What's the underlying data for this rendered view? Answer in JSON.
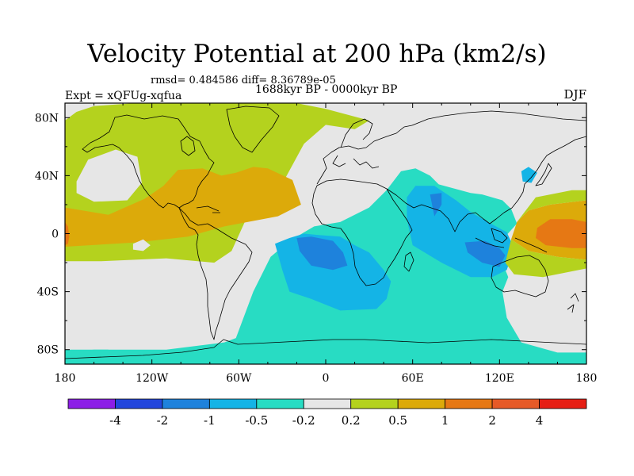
{
  "chart_data": {
    "type": "heatmap",
    "title": "Velocity Potential at 200 hPa (km2/s)",
    "stats_text": "rmsd= 0.484586 diff= 8.36789e-05",
    "period_text": "1688kyr BP - 0000kyr BP",
    "left_label": "Expt = xQFUg-xqfua",
    "right_label": "DJF",
    "projection": "cylindrical equidistant",
    "lon_range": [
      -180,
      180
    ],
    "lat_range": [
      -90,
      90
    ],
    "x_ticks": [
      {
        "value": -180,
        "label": "180"
      },
      {
        "value": -120,
        "label": "120W"
      },
      {
        "value": -60,
        "label": "60W"
      },
      {
        "value": 0,
        "label": "0"
      },
      {
        "value": 60,
        "label": "60E"
      },
      {
        "value": 120,
        "label": "120E"
      },
      {
        "value": 180,
        "label": "180"
      }
    ],
    "y_ticks": [
      {
        "value": 80,
        "label": "80N"
      },
      {
        "value": 40,
        "label": "40N"
      },
      {
        "value": 0,
        "label": "0"
      },
      {
        "value": -40,
        "label": "40S"
      },
      {
        "value": -80,
        "label": "80S"
      }
    ],
    "colorbar": {
      "levels": [
        -4,
        -2,
        -1,
        -0.5,
        -0.2,
        0.2,
        0.5,
        1,
        2,
        4
      ],
      "labels": [
        "-4",
        "-2",
        "-1",
        "-0.5",
        "-0.2",
        "0.2",
        "0.5",
        "1",
        "2",
        "4"
      ],
      "colors": [
        "#8c1ee6",
        "#2346dc",
        "#1e82dc",
        "#14b4e6",
        "#28dcc3",
        "#e6e6e6",
        "#b4d21e",
        "#dcaa0a",
        "#e67814",
        "#e65a28",
        "#e61e14"
      ]
    },
    "background_color": "#e6e6e6",
    "regions": [
      {
        "name": "north-band",
        "level": "0.2-0.5",
        "color": "#b4d21e",
        "points": [
          [
            -160,
            88
          ],
          [
            -90,
            93
          ],
          [
            -20,
            90
          ],
          [
            0,
            86
          ],
          [
            30,
            78
          ],
          [
            20,
            72
          ],
          [
            0,
            75
          ],
          [
            -15,
            62
          ],
          [
            -28,
            38
          ],
          [
            -35,
            24
          ],
          [
            -55,
            10
          ],
          [
            -65,
            -12
          ],
          [
            -77,
            -20
          ],
          [
            -110,
            -17
          ],
          [
            -155,
            -19
          ],
          [
            -180,
            -19
          ],
          [
            -180,
            78
          ],
          [
            -172,
            84
          ]
        ]
      },
      {
        "name": "northeast-pacific-low",
        "level": "-0.2-0.2",
        "color": "#e6e6e6",
        "points": [
          [
            -172,
            36
          ],
          [
            -164,
            51
          ],
          [
            -145,
            58
          ],
          [
            -130,
            53
          ],
          [
            -127,
            35
          ],
          [
            -137,
            23
          ],
          [
            -160,
            22
          ],
          [
            -172,
            28
          ]
        ]
      },
      {
        "name": "atlantic-band",
        "level": "0.5-1",
        "color": "#dcaa0a",
        "points": [
          [
            -180,
            18
          ],
          [
            -150,
            13
          ],
          [
            -125,
            24
          ],
          [
            -112,
            33
          ],
          [
            -102,
            44
          ],
          [
            -85,
            45
          ],
          [
            -72,
            40
          ],
          [
            -62,
            42
          ],
          [
            -50,
            46
          ],
          [
            -40,
            45
          ],
          [
            -23,
            37
          ],
          [
            -17,
            20
          ],
          [
            -33,
            12
          ],
          [
            -70,
            5
          ],
          [
            -95,
            -2
          ],
          [
            -130,
            -6
          ],
          [
            -180,
            -9
          ]
        ]
      },
      {
        "name": "dateline-west",
        "level": "1-2",
        "color": "#e67814",
        "points": [
          [
            -180,
            8
          ],
          [
            -178,
            5
          ],
          [
            -177,
            -2
          ],
          [
            -178,
            -7
          ],
          [
            -180,
            -8
          ]
        ]
      },
      {
        "name": "small-east-pacific-low",
        "level": "-0.2-0.2",
        "color": "#e6e6e6",
        "points": [
          [
            -133,
            -7
          ],
          [
            -126,
            -4
          ],
          [
            -121,
            -8
          ],
          [
            -126,
            -12
          ],
          [
            -133,
            -11
          ]
        ]
      },
      {
        "name": "southern-band",
        "level": "-0.5 - -0.2",
        "color": "#28dcc3",
        "points": [
          [
            -180,
            -82
          ],
          [
            -160,
            -80
          ],
          [
            -110,
            -80
          ],
          [
            -70,
            -75
          ],
          [
            -62,
            -72
          ],
          [
            -50,
            -40
          ],
          [
            -38,
            -16
          ],
          [
            -25,
            -5
          ],
          [
            -8,
            5
          ],
          [
            10,
            8
          ],
          [
            30,
            18
          ],
          [
            42,
            30
          ],
          [
            52,
            43
          ],
          [
            62,
            45
          ],
          [
            72,
            40
          ],
          [
            78,
            34
          ],
          [
            100,
            28
          ],
          [
            108,
            27
          ],
          [
            122,
            23
          ],
          [
            128,
            17
          ],
          [
            132,
            7
          ],
          [
            124,
            -2
          ],
          [
            122,
            -20
          ],
          [
            126,
            -30
          ],
          [
            122,
            -40
          ],
          [
            125,
            -58
          ],
          [
            135,
            -75
          ],
          [
            160,
            -82
          ],
          [
            180,
            -82
          ],
          [
            180,
            -90
          ],
          [
            -180,
            -90
          ]
        ]
      },
      {
        "name": "southeast-pacific-fringe",
        "level": "-0.5 - -0.2",
        "color": "#28dcc3",
        "points": [
          [
            -180,
            -80
          ],
          [
            -180,
            -90
          ],
          [
            -150,
            -90
          ],
          [
            -150,
            -80
          ]
        ]
      },
      {
        "name": "africa-low",
        "level": "-1 - -0.5",
        "color": "#14b4e6",
        "points": [
          [
            -35,
            -7
          ],
          [
            -25,
            -3
          ],
          [
            -15,
            0
          ],
          [
            -5,
            -1
          ],
          [
            10,
            -2
          ],
          [
            20,
            -8
          ],
          [
            30,
            -13
          ],
          [
            40,
            -25
          ],
          [
            45,
            -33
          ],
          [
            42,
            -45
          ],
          [
            35,
            -52
          ],
          [
            10,
            -53
          ],
          [
            -10,
            -45
          ],
          [
            -25,
            -40
          ],
          [
            -30,
            -25
          ]
        ]
      },
      {
        "name": "indian-ocean-low",
        "level": "-1 - -0.5",
        "color": "#14b4e6",
        "points": [
          [
            56,
            25
          ],
          [
            62,
            33
          ],
          [
            75,
            33
          ],
          [
            90,
            23
          ],
          [
            100,
            15
          ],
          [
            112,
            8
          ],
          [
            125,
            1
          ],
          [
            130,
            -10
          ],
          [
            125,
            -25
          ],
          [
            115,
            -30
          ],
          [
            100,
            -30
          ],
          [
            80,
            -20
          ],
          [
            60,
            -8
          ],
          [
            56,
            10
          ]
        ]
      },
      {
        "name": "east-asia-low",
        "level": "-1 - -0.5",
        "color": "#14b4e6",
        "points": [
          [
            135,
            43
          ],
          [
            140,
            46
          ],
          [
            146,
            42
          ],
          [
            142,
            35
          ],
          [
            136,
            36
          ]
        ]
      },
      {
        "name": "africa-core",
        "level": "-2 - -1",
        "color": "#1e82dc",
        "points": [
          [
            -20,
            -3
          ],
          [
            -10,
            -2
          ],
          [
            5,
            -5
          ],
          [
            12,
            -13
          ],
          [
            15,
            -22
          ],
          [
            5,
            -25
          ],
          [
            -10,
            -22
          ],
          [
            -18,
            -12
          ]
        ]
      },
      {
        "name": "indian-core-north",
        "level": "-2 - -1",
        "color": "#1e82dc",
        "points": [
          [
            72,
            27
          ],
          [
            75,
            12
          ],
          [
            80,
            20
          ],
          [
            80,
            28
          ]
        ]
      },
      {
        "name": "indian-core-south",
        "level": "-2 - -1",
        "color": "#1e82dc",
        "points": [
          [
            96,
            -6
          ],
          [
            110,
            -5
          ],
          [
            120,
            -10
          ],
          [
            124,
            -15
          ],
          [
            120,
            -23
          ],
          [
            108,
            -20
          ],
          [
            98,
            -13
          ]
        ]
      },
      {
        "name": "west-pacific-high",
        "level": "0.5-1",
        "color": "#dcaa0a",
        "points": [
          [
            132,
            8
          ],
          [
            140,
            16
          ],
          [
            155,
            20
          ],
          [
            180,
            23
          ],
          [
            180,
            -18
          ],
          [
            160,
            -16
          ],
          [
            140,
            -12
          ],
          [
            128,
            -4
          ]
        ]
      },
      {
        "name": "west-pacific-core",
        "level": "1-2",
        "color": "#e67814",
        "points": [
          [
            146,
            4
          ],
          [
            155,
            10
          ],
          [
            170,
            10
          ],
          [
            180,
            8
          ],
          [
            180,
            -10
          ],
          [
            170,
            -10
          ],
          [
            152,
            -8
          ],
          [
            145,
            -3
          ]
        ]
      },
      {
        "name": "west-pacific-fringe",
        "level": "0.2-0.5",
        "color": "#b4d21e",
        "points": [
          [
            132,
            8
          ],
          [
            145,
            25
          ],
          [
            170,
            30
          ],
          [
            180,
            30
          ],
          [
            180,
            23
          ],
          [
            155,
            20
          ],
          [
            140,
            16
          ]
        ]
      },
      {
        "name": "southwest-pacific-fringe",
        "level": "0.2-0.5",
        "color": "#b4d21e",
        "points": [
          [
            128,
            -4
          ],
          [
            140,
            -12
          ],
          [
            160,
            -16
          ],
          [
            180,
            -18
          ],
          [
            180,
            -24
          ],
          [
            150,
            -30
          ],
          [
            130,
            -28
          ],
          [
            124,
            -20
          ]
        ]
      }
    ]
  }
}
